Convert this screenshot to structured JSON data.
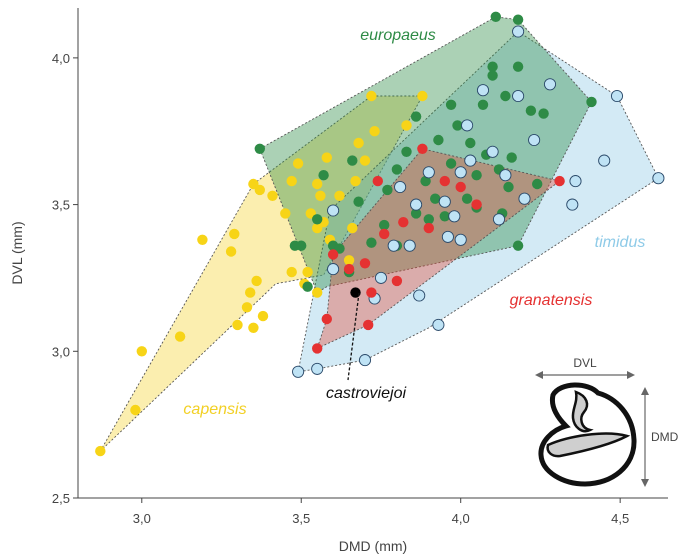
{
  "chart_data": {
    "type": "scatter",
    "xlabel": "DMD (mm)",
    "ylabel": "DVL (mm)",
    "xlim": [
      2.8,
      4.65
    ],
    "ylim": [
      2.5,
      4.17
    ],
    "xticks": [
      "3,0",
      "3,5",
      "4,0",
      "4,5"
    ],
    "xtick_values": [
      3.0,
      3.5,
      4.0,
      4.5
    ],
    "yticks": [
      "2,5",
      "3,0",
      "3,5",
      "4,0"
    ],
    "ytick_values": [
      2.5,
      3.0,
      3.5,
      4.0
    ],
    "grid": false,
    "series": [
      {
        "name": "capensis",
        "color": "#f7d417",
        "hull": [
          [
            2.87,
            2.66
          ],
          [
            3.35,
            3.57
          ],
          [
            3.72,
            3.87
          ],
          [
            3.88,
            3.87
          ],
          [
            3.57,
            3.26
          ],
          [
            3.42,
            3.23
          ]
        ],
        "points": [
          [
            2.87,
            2.66
          ],
          [
            2.98,
            2.8
          ],
          [
            3.0,
            3.0
          ],
          [
            3.12,
            3.05
          ],
          [
            3.19,
            3.38
          ],
          [
            3.29,
            3.4
          ],
          [
            3.28,
            3.34
          ],
          [
            3.3,
            3.09
          ],
          [
            3.33,
            3.15
          ],
          [
            3.34,
            3.2
          ],
          [
            3.35,
            3.08
          ],
          [
            3.36,
            3.24
          ],
          [
            3.38,
            3.12
          ],
          [
            3.35,
            3.57
          ],
          [
            3.37,
            3.55
          ],
          [
            3.41,
            3.53
          ],
          [
            3.45,
            3.47
          ],
          [
            3.47,
            3.58
          ],
          [
            3.49,
            3.64
          ],
          [
            3.47,
            3.27
          ],
          [
            3.52,
            3.27
          ],
          [
            3.51,
            3.23
          ],
          [
            3.53,
            3.47
          ],
          [
            3.55,
            3.42
          ],
          [
            3.55,
            3.57
          ],
          [
            3.56,
            3.53
          ],
          [
            3.58,
            3.66
          ],
          [
            3.57,
            3.44
          ],
          [
            3.59,
            3.38
          ],
          [
            3.62,
            3.53
          ],
          [
            3.66,
            3.42
          ],
          [
            3.67,
            3.58
          ],
          [
            3.68,
            3.71
          ],
          [
            3.7,
            3.65
          ],
          [
            3.72,
            3.87
          ],
          [
            3.73,
            3.75
          ],
          [
            3.83,
            3.77
          ],
          [
            3.88,
            3.87
          ],
          [
            3.55,
            3.2
          ],
          [
            3.65,
            3.31
          ]
        ]
      },
      {
        "name": "europaeus",
        "color": "#2e8b46",
        "hull": [
          [
            3.37,
            3.69
          ],
          [
            4.11,
            4.14
          ],
          [
            4.18,
            4.13
          ],
          [
            4.41,
            3.85
          ],
          [
            4.18,
            3.36
          ],
          [
            3.58,
            3.22
          ],
          [
            3.55,
            3.2
          ]
        ],
        "points": [
          [
            3.37,
            3.69
          ],
          [
            3.48,
            3.36
          ],
          [
            3.5,
            3.36
          ],
          [
            3.52,
            3.22
          ],
          [
            3.55,
            3.45
          ],
          [
            3.57,
            3.6
          ],
          [
            3.6,
            3.36
          ],
          [
            3.62,
            3.35
          ],
          [
            3.65,
            3.27
          ],
          [
            3.66,
            3.65
          ],
          [
            3.68,
            3.51
          ],
          [
            3.72,
            3.37
          ],
          [
            3.76,
            3.43
          ],
          [
            3.77,
            3.55
          ],
          [
            3.8,
            3.62
          ],
          [
            3.8,
            3.36
          ],
          [
            3.83,
            3.68
          ],
          [
            3.86,
            3.8
          ],
          [
            3.86,
            3.47
          ],
          [
            3.89,
            3.58
          ],
          [
            3.9,
            3.45
          ],
          [
            3.92,
            3.52
          ],
          [
            3.93,
            3.72
          ],
          [
            3.95,
            3.46
          ],
          [
            3.97,
            3.84
          ],
          [
            3.97,
            3.64
          ],
          [
            3.99,
            3.77
          ],
          [
            4.0,
            3.38
          ],
          [
            4.02,
            3.52
          ],
          [
            4.03,
            3.71
          ],
          [
            4.05,
            3.6
          ],
          [
            4.05,
            3.49
          ],
          [
            4.07,
            3.84
          ],
          [
            4.08,
            3.67
          ],
          [
            4.1,
            3.97
          ],
          [
            4.1,
            3.94
          ],
          [
            4.11,
            4.14
          ],
          [
            4.12,
            3.62
          ],
          [
            4.13,
            3.47
          ],
          [
            4.14,
            3.87
          ],
          [
            4.15,
            3.56
          ],
          [
            4.16,
            3.66
          ],
          [
            4.18,
            3.97
          ],
          [
            4.18,
            4.13
          ],
          [
            4.22,
            3.82
          ],
          [
            4.24,
            3.57
          ],
          [
            4.26,
            3.81
          ],
          [
            4.41,
            3.85
          ],
          [
            4.18,
            3.36
          ]
        ]
      },
      {
        "name": "timidus",
        "color": "#bfe3f5",
        "hull": [
          [
            4.18,
            4.09
          ],
          [
            4.49,
            3.87
          ],
          [
            4.62,
            3.59
          ],
          [
            3.9,
            3.08
          ],
          [
            3.7,
            2.97
          ],
          [
            3.55,
            2.94
          ],
          [
            3.49,
            2.93
          ],
          [
            3.59,
            3.48
          ]
        ],
        "points": [
          [
            3.49,
            2.93
          ],
          [
            3.55,
            2.94
          ],
          [
            3.6,
            3.28
          ],
          [
            3.6,
            3.48
          ],
          [
            3.7,
            2.97
          ],
          [
            3.73,
            3.18
          ],
          [
            3.75,
            3.25
          ],
          [
            3.79,
            3.36
          ],
          [
            3.81,
            3.56
          ],
          [
            3.84,
            3.36
          ],
          [
            3.86,
            3.5
          ],
          [
            3.87,
            3.19
          ],
          [
            3.9,
            3.61
          ],
          [
            3.93,
            3.09
          ],
          [
            3.95,
            3.51
          ],
          [
            3.96,
            3.39
          ],
          [
            3.98,
            3.46
          ],
          [
            4.0,
            3.38
          ],
          [
            4.0,
            3.61
          ],
          [
            4.02,
            3.77
          ],
          [
            4.03,
            3.65
          ],
          [
            4.07,
            3.89
          ],
          [
            4.1,
            3.68
          ],
          [
            4.12,
            3.45
          ],
          [
            4.14,
            3.6
          ],
          [
            4.18,
            4.09
          ],
          [
            4.18,
            3.87
          ],
          [
            4.2,
            3.52
          ],
          [
            4.23,
            3.72
          ],
          [
            4.28,
            3.91
          ],
          [
            4.35,
            3.5
          ],
          [
            4.36,
            3.58
          ],
          [
            4.45,
            3.65
          ],
          [
            4.49,
            3.87
          ],
          [
            4.62,
            3.59
          ]
        ]
      },
      {
        "name": "granatensis",
        "color": "#e53232",
        "hull": [
          [
            3.55,
            3.01
          ],
          [
            3.71,
            3.09
          ],
          [
            4.31,
            3.58
          ],
          [
            3.88,
            3.69
          ],
          [
            3.6,
            3.33
          ],
          [
            3.58,
            3.11
          ]
        ],
        "points": [
          [
            3.55,
            3.01
          ],
          [
            3.58,
            3.11
          ],
          [
            3.6,
            3.33
          ],
          [
            3.65,
            3.28
          ],
          [
            3.7,
            3.3
          ],
          [
            3.71,
            3.09
          ],
          [
            3.72,
            3.2
          ],
          [
            3.74,
            3.58
          ],
          [
            3.76,
            3.4
          ],
          [
            3.8,
            3.24
          ],
          [
            3.82,
            3.44
          ],
          [
            3.88,
            3.69
          ],
          [
            3.9,
            3.42
          ],
          [
            3.95,
            3.58
          ],
          [
            4.0,
            3.56
          ],
          [
            4.05,
            3.5
          ],
          [
            4.31,
            3.58
          ]
        ]
      },
      {
        "name": "castroviejoi",
        "color": "#000000",
        "hull": [],
        "points": [
          [
            3.67,
            3.2
          ]
        ]
      }
    ],
    "labels": {
      "europaeus": "europaeus",
      "timidus": "timidus",
      "granatensis": "granatensis",
      "capensis": "capensis",
      "castroviejoi": "castroviejoi"
    },
    "inset": {
      "horizontal_label": "DVL",
      "vertical_label": "DMD"
    }
  }
}
